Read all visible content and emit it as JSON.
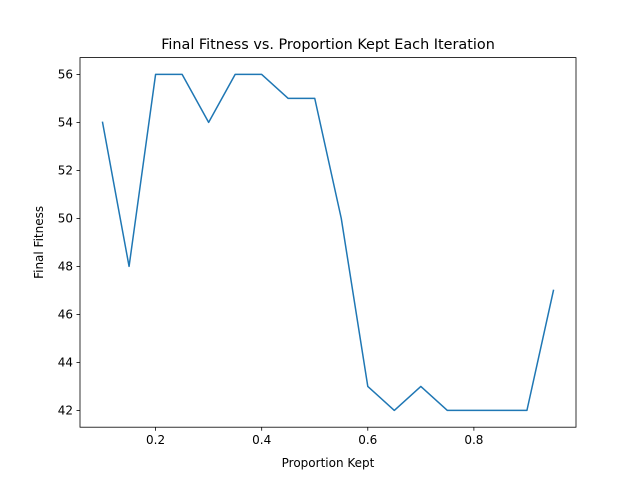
{
  "chart_data": {
    "type": "line",
    "title": "Final Fitness vs. Proportion Kept Each Iteration",
    "xlabel": "Proportion Kept",
    "ylabel": "Final Fitness",
    "x": [
      0.1,
      0.15,
      0.2,
      0.25,
      0.3,
      0.35,
      0.4,
      0.45,
      0.5,
      0.55,
      0.6,
      0.65,
      0.7,
      0.75,
      0.8,
      0.85,
      0.9,
      0.95
    ],
    "series": [
      {
        "values": [
          54,
          48,
          56,
          56,
          54,
          56,
          56,
          55,
          55,
          50,
          43,
          42,
          43,
          42,
          42,
          42,
          42,
          47
        ],
        "color": "#1f77b4"
      }
    ],
    "xlim": [
      0.0575,
      0.9925
    ],
    "ylim": [
      41.3,
      56.7
    ],
    "xticks": [
      0.2,
      0.4,
      0.6,
      0.8
    ],
    "xtick_labels": [
      "0.2",
      "0.4",
      "0.6",
      "0.8"
    ],
    "yticks": [
      42,
      44,
      46,
      48,
      50,
      52,
      54,
      56
    ],
    "ytick_labels": [
      "42",
      "44",
      "46",
      "48",
      "50",
      "52",
      "54",
      "56"
    ],
    "grid": false,
    "legend": "none"
  }
}
